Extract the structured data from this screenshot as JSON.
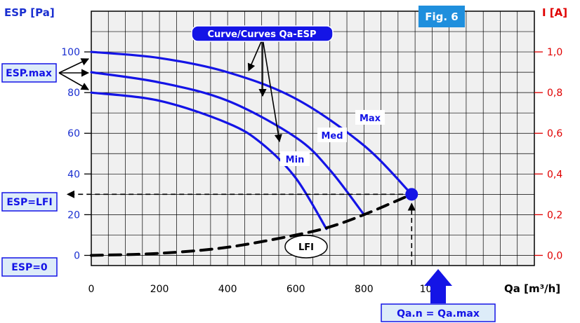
{
  "figure_label": "Fig. 6",
  "callouts": {
    "curves": "Curve/Curves Qa-ESP",
    "esp_max": "ESP.max",
    "esp_lfi": "ESP=LFI",
    "esp_zero": "ESP=0",
    "qa_n": "Qa.n = Qa.max"
  },
  "colors": {
    "curve": "#1414e6",
    "left_axis": "#1a2fd0",
    "right_axis": "#e00000",
    "grid_fill": "#f0f0f0",
    "label_box": "#ddecf9",
    "fig_box": "#1f8fdd"
  },
  "chart_data": {
    "type": "line",
    "title": "",
    "xlabel": "Qa [m³/h]",
    "ylabel": "ESP [Pa]",
    "y2label": "I [A]",
    "xlim": [
      0,
      1300
    ],
    "ylim": [
      -5,
      120
    ],
    "y2lim": [
      -0.05,
      1.2
    ],
    "x_ticks": [
      0,
      200,
      400,
      600,
      800,
      1000
    ],
    "y_ticks": [
      0,
      20,
      40,
      60,
      80,
      100
    ],
    "y2_ticks": [
      "0,0",
      "0,2",
      "0,4",
      "0,6",
      "0,8",
      "1,0"
    ],
    "grid": true,
    "series": [
      {
        "name": "Max",
        "style": "solid",
        "x": [
          0,
          200,
          400,
          600,
          800,
          940
        ],
        "y": [
          100,
          97,
          90,
          77,
          54,
          30
        ]
      },
      {
        "name": "Med",
        "style": "solid",
        "x": [
          0,
          200,
          400,
          600,
          700,
          800
        ],
        "y": [
          90,
          85,
          76,
          58,
          42,
          20
        ]
      },
      {
        "name": "Min",
        "style": "solid",
        "x": [
          0,
          200,
          400,
          500,
          600,
          690
        ],
        "y": [
          80,
          76,
          65,
          55,
          38,
          13
        ]
      },
      {
        "name": "LFI",
        "style": "dashed",
        "x": [
          0,
          200,
          400,
          600,
          700,
          800,
          940
        ],
        "y": [
          0,
          1,
          4,
          10,
          14,
          20,
          30
        ]
      }
    ],
    "operating_point": {
      "x": 940,
      "y": 30
    }
  }
}
